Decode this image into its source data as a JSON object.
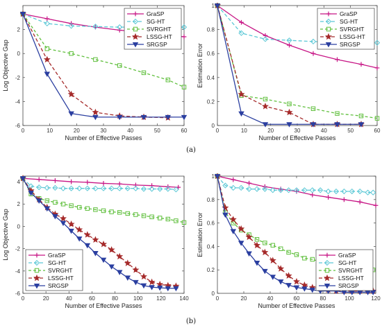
{
  "chart_data": [
    {
      "type": "line",
      "panel": "top-left",
      "xlabel": "Number of Effective Passes",
      "ylabel": "Log Objective Gap",
      "xlim": [
        0,
        60
      ],
      "ylim": [
        -6,
        4
      ],
      "xticks": [
        0,
        10,
        20,
        30,
        40,
        50,
        60
      ],
      "yticks": [
        -6,
        -4,
        -2,
        0,
        2
      ],
      "legend": "top-right",
      "grid": false,
      "series": [
        {
          "name": "GraSP",
          "color": "#c71585",
          "marker": "plus",
          "dash": "",
          "x": [
            0,
            9,
            18,
            27,
            36,
            45,
            54,
            60
          ],
          "y": [
            3.3,
            2.9,
            2.5,
            2.2,
            1.95,
            1.75,
            1.55,
            1.4
          ]
        },
        {
          "name": "SG-HT",
          "color": "#5bc8d6",
          "marker": "diamond",
          "dash": "5,3",
          "x": [
            0,
            9,
            18,
            27,
            36,
            45,
            54,
            60
          ],
          "y": [
            3.3,
            2.5,
            2.3,
            2.25,
            2.2,
            2.2,
            2.2,
            2.2
          ]
        },
        {
          "name": "SVRGHT",
          "color": "#5fbf3c",
          "marker": "square",
          "dash": "4,3",
          "x": [
            0,
            9,
            18,
            27,
            36,
            45,
            54,
            60
          ],
          "y": [
            3.3,
            0.4,
            0.0,
            -0.5,
            -1.0,
            -1.6,
            -2.2,
            -2.8
          ]
        },
        {
          "name": "LSSG-HT",
          "color": "#a52a2a",
          "marker": "star",
          "dash": "5,3",
          "x": [
            0,
            9,
            18,
            27,
            36,
            45,
            54
          ],
          "y": [
            3.3,
            -0.5,
            -3.4,
            -4.9,
            -5.2,
            -5.3,
            -5.35
          ]
        },
        {
          "name": "SRGSP",
          "color": "#2b3fa0",
          "marker": "triangle",
          "dash": "",
          "x": [
            0,
            9,
            18,
            27,
            36,
            45,
            54,
            60
          ],
          "y": [
            3.3,
            -1.7,
            -5.0,
            -5.3,
            -5.3,
            -5.3,
            -5.3,
            -5.3
          ]
        }
      ]
    },
    {
      "type": "line",
      "panel": "top-right",
      "xlabel": "Number of Effective Passes",
      "ylabel": "Estimation Error",
      "xlim": [
        0,
        60
      ],
      "ylim": [
        0,
        1
      ],
      "xticks": [
        0,
        10,
        20,
        30,
        40,
        50,
        60
      ],
      "yticks": [
        0,
        0.2,
        0.4,
        0.6,
        0.8,
        1
      ],
      "legend": "top-right",
      "grid": false,
      "series": [
        {
          "name": "GraSP",
          "color": "#c71585",
          "marker": "plus",
          "dash": "",
          "x": [
            0,
            9,
            18,
            27,
            36,
            45,
            54,
            60
          ],
          "y": [
            1.0,
            0.86,
            0.75,
            0.67,
            0.6,
            0.55,
            0.51,
            0.48
          ]
        },
        {
          "name": "SG-HT",
          "color": "#5bc8d6",
          "marker": "diamond",
          "dash": "5,3",
          "x": [
            0,
            9,
            18,
            27,
            36,
            45,
            54,
            60
          ],
          "y": [
            1.0,
            0.77,
            0.72,
            0.71,
            0.7,
            0.69,
            0.69,
            0.69
          ]
        },
        {
          "name": "SVRGHT",
          "color": "#5fbf3c",
          "marker": "square",
          "dash": "4,3",
          "x": [
            0,
            9,
            18,
            27,
            36,
            45,
            54,
            60
          ],
          "y": [
            1.0,
            0.25,
            0.22,
            0.18,
            0.14,
            0.1,
            0.08,
            0.06
          ]
        },
        {
          "name": "LSSG-HT",
          "color": "#a52a2a",
          "marker": "star",
          "dash": "5,3",
          "x": [
            0,
            9,
            18,
            27,
            36,
            45,
            54
          ],
          "y": [
            1.0,
            0.26,
            0.16,
            0.11,
            0.01,
            0.01,
            0.01
          ]
        },
        {
          "name": "SRGSP",
          "color": "#2b3fa0",
          "marker": "triangle",
          "dash": "",
          "x": [
            0,
            9,
            18,
            27,
            36,
            45,
            54
          ],
          "y": [
            1.0,
            0.1,
            0.01,
            0.01,
            0.01,
            0.01,
            0.01
          ]
        }
      ]
    },
    {
      "type": "line",
      "panel": "bottom-left",
      "xlabel": "Number of Effective Passes",
      "ylabel": "Log Objective Gap",
      "xlim": [
        0,
        140
      ],
      "ylim": [
        -6,
        4.5
      ],
      "xticks": [
        0,
        20,
        40,
        60,
        80,
        100,
        120,
        140
      ],
      "yticks": [
        -6,
        -4,
        -2,
        0,
        2,
        4
      ],
      "legend": "bottom-left",
      "grid": false,
      "series": [
        {
          "name": "GraSP",
          "color": "#c71585",
          "marker": "plus",
          "dash": "",
          "x": [
            0,
            14,
            28,
            42,
            56,
            70,
            84,
            98,
            112,
            126,
            135
          ],
          "y": [
            4.3,
            4.2,
            4.1,
            4.0,
            3.95,
            3.85,
            3.8,
            3.7,
            3.65,
            3.55,
            3.5
          ]
        },
        {
          "name": "SG-HT",
          "color": "#5bc8d6",
          "marker": "diamond",
          "dash": "5,3",
          "x": [
            0,
            7,
            14,
            21,
            28,
            35,
            42,
            49,
            56,
            63,
            70,
            77,
            84,
            91,
            98,
            105,
            112,
            119,
            126,
            133
          ],
          "y": [
            4.3,
            3.6,
            3.5,
            3.45,
            3.45,
            3.4,
            3.4,
            3.4,
            3.4,
            3.4,
            3.4,
            3.4,
            3.4,
            3.4,
            3.4,
            3.35,
            3.35,
            3.35,
            3.35,
            3.3
          ]
        },
        {
          "name": "SVRGHT",
          "color": "#5fbf3c",
          "marker": "square",
          "dash": "4,3",
          "x": [
            0,
            7,
            14,
            21,
            28,
            35,
            42,
            49,
            56,
            63,
            70,
            77,
            84,
            91,
            98,
            105,
            112,
            119,
            126,
            133,
            140
          ],
          "y": [
            4.3,
            2.9,
            2.5,
            2.3,
            2.15,
            2.0,
            1.85,
            1.7,
            1.6,
            1.5,
            1.4,
            1.3,
            1.25,
            1.15,
            1.05,
            0.95,
            0.85,
            0.75,
            0.65,
            0.5,
            0.35
          ]
        },
        {
          "name": "LSSG-HT",
          "color": "#a52a2a",
          "marker": "star",
          "dash": "5,3",
          "x": [
            0,
            7,
            14,
            21,
            28,
            35,
            42,
            49,
            56,
            63,
            70,
            77,
            84,
            91,
            98,
            105,
            112,
            119,
            126,
            133
          ],
          "y": [
            4.3,
            3.2,
            2.4,
            1.7,
            1.1,
            0.7,
            0.2,
            -0.3,
            -0.75,
            -1.2,
            -1.6,
            -2.1,
            -2.7,
            -3.3,
            -3.9,
            -4.5,
            -5.0,
            -5.2,
            -5.3,
            -5.35
          ]
        },
        {
          "name": "SRGSP",
          "color": "#2b3fa0",
          "marker": "triangle",
          "dash": "",
          "x": [
            0,
            7,
            14,
            21,
            28,
            35,
            42,
            49,
            56,
            63,
            70,
            77,
            84,
            91,
            98,
            105,
            112,
            119,
            126,
            133
          ],
          "y": [
            4.3,
            3.0,
            2.3,
            1.6,
            0.9,
            0.3,
            -0.4,
            -1.1,
            -1.7,
            -2.4,
            -3.0,
            -3.6,
            -4.1,
            -4.6,
            -5.0,
            -5.3,
            -5.45,
            -5.5,
            -5.55,
            -5.55
          ]
        }
      ]
    },
    {
      "type": "line",
      "panel": "bottom-right",
      "xlabel": "Number of Effective Passes",
      "ylabel": "Estimation Error",
      "xlim": [
        0,
        120
      ],
      "ylim": [
        0,
        1
      ],
      "xticks": [
        0,
        20,
        40,
        60,
        80,
        100,
        120
      ],
      "yticks": [
        0,
        0.2,
        0.4,
        0.6,
        0.8,
        1
      ],
      "legend": "bottom-right",
      "grid": false,
      "series": [
        {
          "name": "GraSP",
          "color": "#c71585",
          "marker": "plus",
          "dash": "",
          "x": [
            0,
            12,
            24,
            36,
            48,
            60,
            72,
            84,
            96,
            108,
            120
          ],
          "y": [
            1.0,
            0.97,
            0.94,
            0.91,
            0.89,
            0.87,
            0.84,
            0.82,
            0.8,
            0.78,
            0.75
          ]
        },
        {
          "name": "SG-HT",
          "color": "#5bc8d6",
          "marker": "diamond",
          "dash": "5,3",
          "x": [
            0,
            6,
            12,
            18,
            24,
            30,
            36,
            42,
            48,
            54,
            60,
            66,
            72,
            78,
            84,
            90,
            96,
            102,
            108,
            114,
            118
          ],
          "y": [
            1.0,
            0.92,
            0.9,
            0.9,
            0.89,
            0.89,
            0.89,
            0.88,
            0.88,
            0.88,
            0.88,
            0.88,
            0.88,
            0.88,
            0.87,
            0.87,
            0.87,
            0.87,
            0.87,
            0.86,
            0.86
          ]
        },
        {
          "name": "SVRGHT",
          "color": "#5fbf3c",
          "marker": "square",
          "dash": "4,3",
          "x": [
            0,
            6,
            12,
            18,
            24,
            30,
            36,
            42,
            48,
            54,
            60,
            66,
            72,
            78,
            84,
            90,
            96,
            102,
            108,
            114,
            118
          ],
          "y": [
            1.0,
            0.69,
            0.6,
            0.54,
            0.5,
            0.46,
            0.43,
            0.41,
            0.38,
            0.35,
            0.33,
            0.3,
            0.29,
            0.27,
            0.26,
            0.25,
            0.24,
            0.23,
            0.22,
            0.21,
            0.2
          ]
        },
        {
          "name": "LSSG-HT",
          "color": "#a52a2a",
          "marker": "star",
          "dash": "5,3",
          "x": [
            0,
            6,
            12,
            18,
            24,
            30,
            36,
            42,
            48,
            54,
            60,
            66,
            72,
            78,
            84,
            90,
            96,
            102,
            108,
            114,
            118
          ],
          "y": [
            1.0,
            0.73,
            0.63,
            0.55,
            0.48,
            0.41,
            0.35,
            0.28,
            0.21,
            0.15,
            0.1,
            0.07,
            0.05,
            0.04,
            0.03,
            0.02,
            0.02,
            0.02,
            0.02,
            0.02,
            0.02
          ]
        },
        {
          "name": "SRGSP",
          "color": "#2b3fa0",
          "marker": "triangle",
          "dash": "",
          "x": [
            0,
            6,
            12,
            18,
            24,
            30,
            36,
            42,
            48,
            54,
            60,
            66,
            72,
            78,
            84,
            90,
            96,
            102,
            108,
            114,
            118
          ],
          "y": [
            1.0,
            0.67,
            0.53,
            0.43,
            0.34,
            0.26,
            0.19,
            0.14,
            0.1,
            0.07,
            0.05,
            0.04,
            0.03,
            0.02,
            0.02,
            0.02,
            0.01,
            0.01,
            0.01,
            0.01,
            0.01
          ]
        }
      ]
    }
  ],
  "captions": [
    "(a)",
    "(b)"
  ]
}
